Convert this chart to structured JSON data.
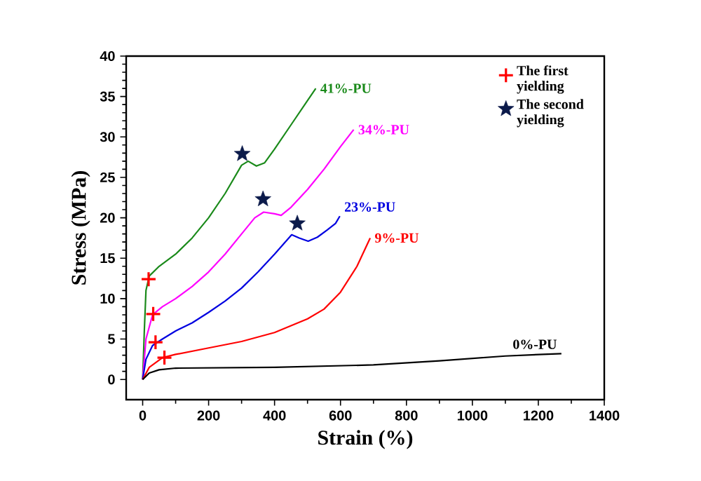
{
  "chart_data": {
    "type": "line",
    "xlabel": "Strain (%)",
    "ylabel": "Stress (MPa)",
    "xlim": [
      -50,
      1400
    ],
    "ylim": [
      -2.5,
      40
    ],
    "xticks": [
      0,
      200,
      400,
      600,
      800,
      1000,
      1200,
      1400
    ],
    "yticks": [
      0,
      5,
      10,
      15,
      20,
      25,
      30,
      35,
      40
    ],
    "grid": false,
    "legend": "top right",
    "series": [
      {
        "name": "41%-PU",
        "color": "#1a8a1a",
        "x": [
          0,
          5,
          10,
          20,
          50,
          100,
          150,
          200,
          250,
          300,
          320,
          345,
          370,
          400,
          450,
          500,
          525
        ],
        "values": [
          0,
          6,
          11,
          12.8,
          14,
          15.5,
          17.5,
          20,
          23,
          26.5,
          27,
          26.4,
          26.8,
          28.5,
          31.5,
          34.5,
          36
        ]
      },
      {
        "name": "34%-PU",
        "color": "#ff00ff",
        "x": [
          0,
          10,
          30,
          60,
          100,
          150,
          200,
          250,
          300,
          340,
          367,
          400,
          420,
          450,
          500,
          550,
          600,
          640
        ],
        "values": [
          0,
          5,
          8,
          9,
          10,
          11.5,
          13.3,
          15.5,
          18,
          20,
          20.7,
          20.5,
          20.3,
          21.3,
          23.5,
          26,
          28.8,
          30.9
        ]
      },
      {
        "name": "23%-PU",
        "color": "#0000e0",
        "x": [
          0,
          10,
          30,
          60,
          100,
          150,
          200,
          250,
          300,
          350,
          400,
          452,
          475,
          502,
          530,
          560,
          585,
          598
        ],
        "values": [
          0,
          2.5,
          4.2,
          5,
          6,
          7,
          8.3,
          9.7,
          11.3,
          13.3,
          15.5,
          17.9,
          17.5,
          17.1,
          17.6,
          18.5,
          19.3,
          20.2
        ]
      },
      {
        "name": "9%-PU",
        "color": "#ff0000",
        "x": [
          0,
          20,
          60,
          100,
          200,
          300,
          400,
          500,
          550,
          600,
          650,
          690
        ],
        "values": [
          0,
          1.5,
          2.7,
          3.1,
          3.9,
          4.7,
          5.8,
          7.5,
          8.7,
          10.8,
          14,
          17.5
        ]
      },
      {
        "name": "0%-PU",
        "color": "#000000",
        "x": [
          0,
          20,
          50,
          100,
          400,
          700,
          900,
          1100,
          1270
        ],
        "values": [
          0,
          0.8,
          1.2,
          1.4,
          1.5,
          1.8,
          2.3,
          2.9,
          3.2
        ]
      },
      {
        "name": "The first yielding",
        "type": "scatter",
        "marker": "cross",
        "color": "#ff0000",
        "x": [
          18,
          32,
          39,
          66
        ],
        "values": [
          12.4,
          8.1,
          4.6,
          2.7
        ]
      },
      {
        "name": "The second yielding",
        "type": "scatter",
        "marker": "star",
        "color": "#0b1a4a",
        "x": [
          302,
          365,
          469
        ],
        "values": [
          27.9,
          22.3,
          19.3
        ]
      }
    ]
  }
}
